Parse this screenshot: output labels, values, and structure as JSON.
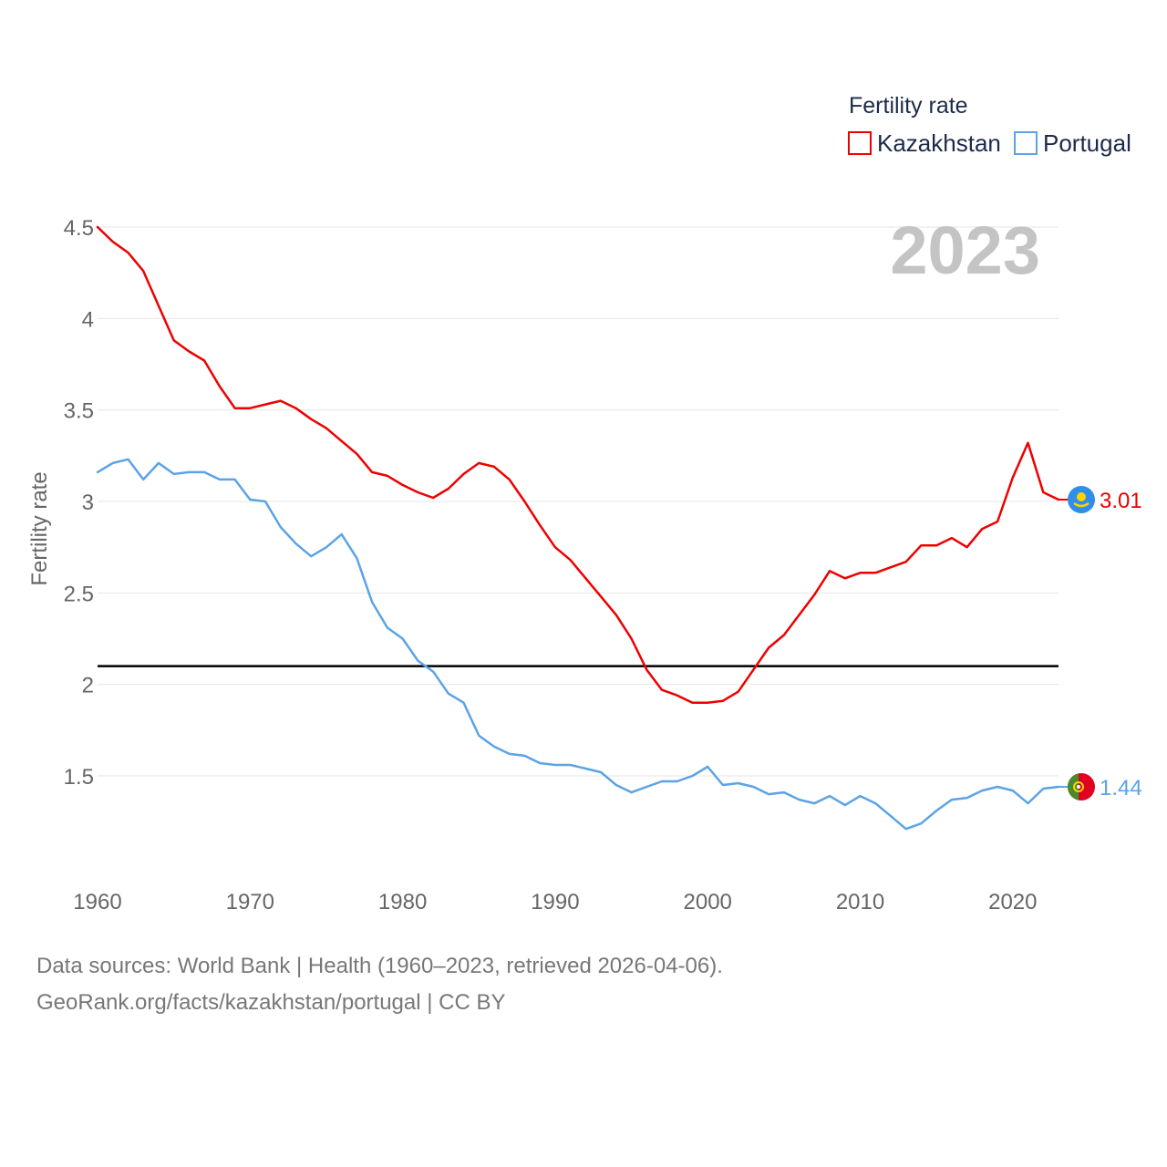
{
  "chart_data": {
    "type": "line",
    "ylabel": "Fertility rate",
    "xlabel": "",
    "year_label": "2023",
    "legend_title": "Fertility rate",
    "legend_position": "top-right",
    "xlim": [
      1960,
      2023
    ],
    "ylim": [
      1.05,
      4.55
    ],
    "x_ticks": [
      1960,
      1970,
      1980,
      1990,
      2000,
      2010,
      2020
    ],
    "x_tick_labels": [
      "1960",
      "1970",
      "1980",
      "1990",
      "2000",
      "2010",
      "2020"
    ],
    "y_ticks": [
      1.5,
      2,
      2.5,
      3,
      3.5,
      4,
      4.5
    ],
    "y_tick_labels": [
      "1.5",
      "2",
      "2.5",
      "3",
      "3.5",
      "4",
      "4.5"
    ],
    "grid": true,
    "reference_line": {
      "value": 2.1,
      "color": "#000000"
    },
    "series": [
      {
        "name": "Kazakhstan",
        "color": "#ee0000",
        "flag": "kazakhstan-flag-icon",
        "end_label": "3.01",
        "x": [
          1960,
          1961,
          1962,
          1963,
          1964,
          1965,
          1966,
          1967,
          1968,
          1969,
          1970,
          1971,
          1972,
          1973,
          1974,
          1975,
          1976,
          1977,
          1978,
          1979,
          1980,
          1981,
          1982,
          1983,
          1984,
          1985,
          1986,
          1987,
          1988,
          1989,
          1990,
          1991,
          1992,
          1993,
          1994,
          1995,
          1996,
          1997,
          1998,
          1999,
          2000,
          2001,
          2002,
          2003,
          2004,
          2005,
          2006,
          2007,
          2008,
          2009,
          2010,
          2011,
          2012,
          2013,
          2014,
          2015,
          2016,
          2017,
          2018,
          2019,
          2020,
          2021,
          2022,
          2023
        ],
        "values": [
          4.5,
          4.42,
          4.36,
          4.26,
          4.07,
          3.88,
          3.82,
          3.77,
          3.63,
          3.51,
          3.51,
          3.53,
          3.55,
          3.51,
          3.45,
          3.4,
          3.33,
          3.26,
          3.16,
          3.14,
          3.09,
          3.05,
          3.02,
          3.07,
          3.15,
          3.21,
          3.19,
          3.12,
          3.0,
          2.87,
          2.75,
          2.68,
          2.58,
          2.48,
          2.38,
          2.25,
          2.08,
          1.97,
          1.94,
          1.9,
          1.9,
          1.91,
          1.96,
          2.08,
          2.2,
          2.27,
          2.38,
          2.49,
          2.62,
          2.58,
          2.61,
          2.61,
          2.64,
          2.67,
          2.76,
          2.76,
          2.8,
          2.75,
          2.85,
          2.89,
          3.13,
          3.32,
          3.05,
          3.01
        ]
      },
      {
        "name": "Portugal",
        "color": "#5ba3e6",
        "flag": "portugal-flag-icon",
        "end_label": "1.44",
        "x": [
          1960,
          1961,
          1962,
          1963,
          1964,
          1965,
          1966,
          1967,
          1968,
          1969,
          1970,
          1971,
          1972,
          1973,
          1974,
          1975,
          1976,
          1977,
          1978,
          1979,
          1980,
          1981,
          1982,
          1983,
          1984,
          1985,
          1986,
          1987,
          1988,
          1989,
          1990,
          1991,
          1992,
          1993,
          1994,
          1995,
          1996,
          1997,
          1998,
          1999,
          2000,
          2001,
          2002,
          2003,
          2004,
          2005,
          2006,
          2007,
          2008,
          2009,
          2010,
          2011,
          2012,
          2013,
          2014,
          2015,
          2016,
          2017,
          2018,
          2019,
          2020,
          2021,
          2022,
          2023
        ],
        "values": [
          3.16,
          3.21,
          3.23,
          3.12,
          3.21,
          3.15,
          3.16,
          3.16,
          3.12,
          3.12,
          3.01,
          3.0,
          2.86,
          2.77,
          2.7,
          2.75,
          2.82,
          2.69,
          2.45,
          2.31,
          2.25,
          2.13,
          2.07,
          1.95,
          1.9,
          1.72,
          1.66,
          1.62,
          1.61,
          1.57,
          1.56,
          1.56,
          1.54,
          1.52,
          1.45,
          1.41,
          1.44,
          1.47,
          1.47,
          1.5,
          1.55,
          1.45,
          1.46,
          1.44,
          1.4,
          1.41,
          1.37,
          1.35,
          1.39,
          1.34,
          1.39,
          1.35,
          1.28,
          1.21,
          1.24,
          1.31,
          1.37,
          1.38,
          1.42,
          1.44,
          1.42,
          1.35,
          1.43,
          1.44
        ]
      }
    ]
  },
  "footer": {
    "line1": "Data sources: World Bank | Health (1960–2023, retrieved 2026-04-06).",
    "line2": "GeoRank.org/facts/kazakhstan/portugal | CC BY"
  }
}
